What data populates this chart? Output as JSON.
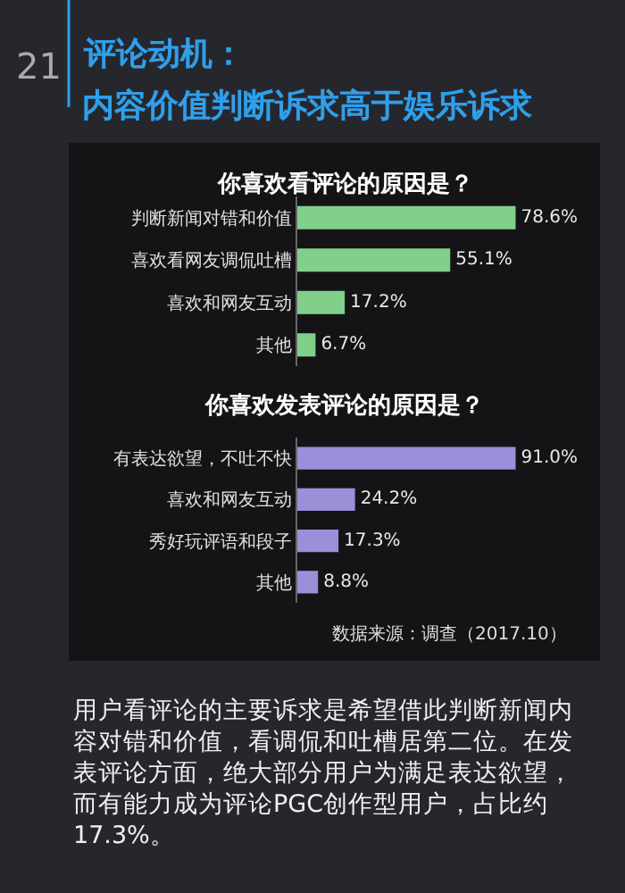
{
  "chart_data": [
    {
      "type": "bar",
      "orientation": "horizontal",
      "title": "你喜欢看评论的原因是？",
      "categories": [
        "判断新闻对错和价值",
        "喜欢看网友调侃吐槽",
        "喜欢和网友互动",
        "其他"
      ],
      "values": [
        78.6,
        55.1,
        17.2,
        6.7
      ],
      "value_labels": [
        "78.6%",
        "55.1%",
        "17.2%",
        "6.7%"
      ],
      "color": "#80d08c",
      "annotations": [
        "21",
        "评论动机：",
        "内容价值判断诉求高于娱乐诉求"
      ]
    },
    {
      "type": "bar",
      "orientation": "horizontal",
      "title": "你喜欢发表评论的原因是？",
      "categories": [
        "有表达欲望，不吐不快",
        "喜欢和网友互动",
        "秀好玩评语和段子",
        "其他"
      ],
      "values": [
        91.0,
        24.2,
        17.3,
        8.8
      ],
      "value_labels": [
        "91.0%",
        "24.2%",
        "17.3%",
        "8.8%"
      ],
      "color": "#9a8fd9",
      "annotations": [
        "数据来源：调查（2017.10）",
        "用户看评论的主要诉求是希望借此判断新闻内容对错和价值，看调侃和吐槽居第二位。在发表评论方面，绝大部分用户为满足表达欲望，而有能力成为评论PGC创作型用户，占比约17.3%。"
      ]
    }
  ]
}
